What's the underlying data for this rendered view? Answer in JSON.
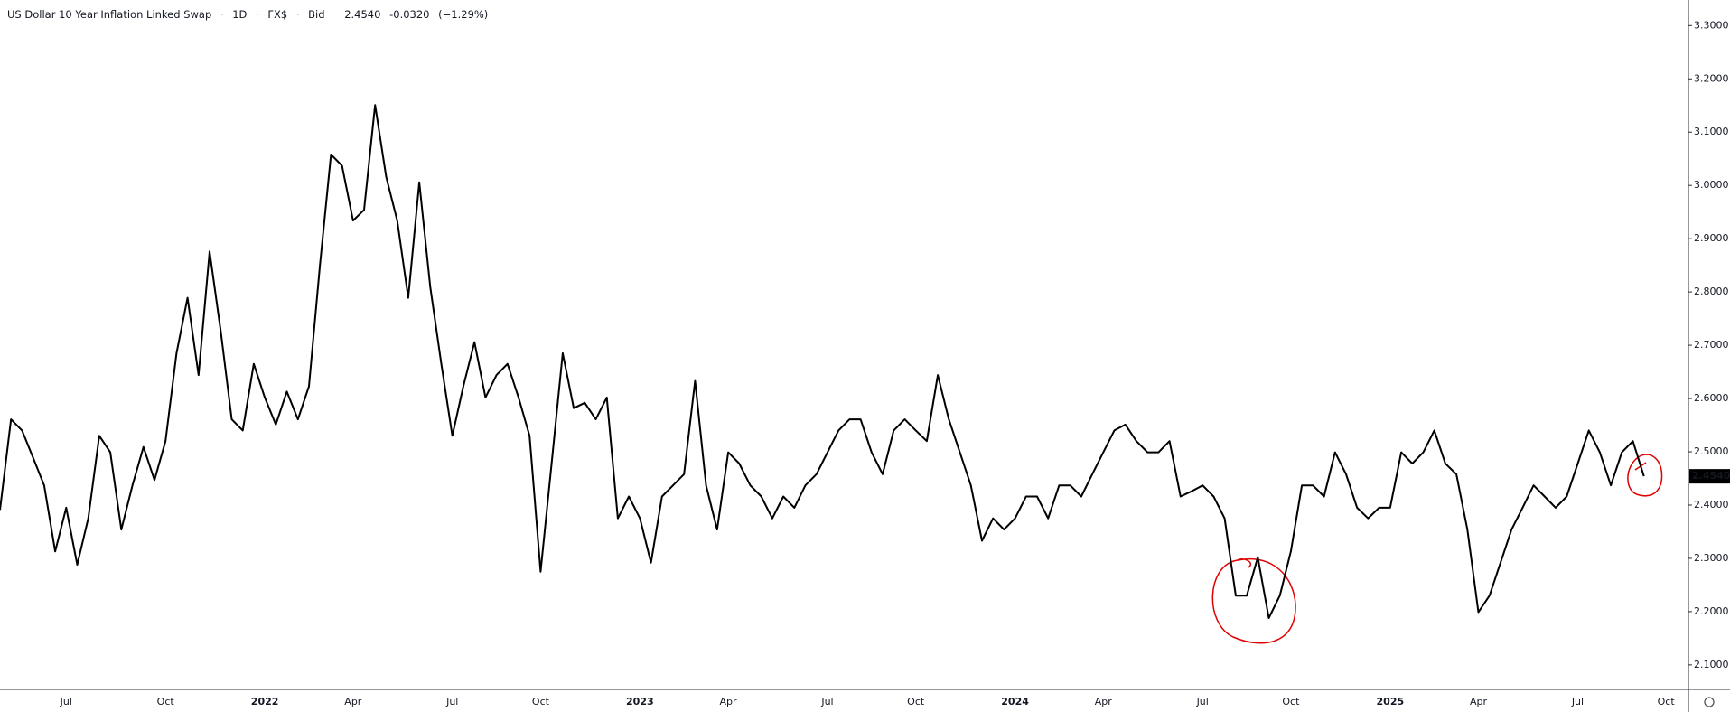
{
  "chart_data": {
    "type": "line",
    "title": "US Dollar 10 Year Inflation Linked Swap",
    "interval": "1D",
    "source": "FX$",
    "quote_side": "Bid",
    "last_price": "2.4540",
    "change": "-0.0320",
    "change_percent": "(−1.29%)",
    "color": "#000000",
    "categories": [
      null,
      null,
      null,
      null,
      null,
      null,
      "Jul",
      null,
      null,
      null,
      null,
      null,
      null,
      null,
      null,
      "Oct",
      null,
      null,
      null,
      null,
      null,
      null,
      null,
      null,
      "2022",
      null,
      null,
      null,
      null,
      null,
      null,
      null,
      "Apr",
      null,
      null,
      null,
      null,
      null,
      null,
      null,
      null,
      "Jul",
      null,
      null,
      null,
      null,
      null,
      null,
      null,
      "Oct",
      null,
      null,
      null,
      null,
      null,
      null,
      null,
      null,
      "2023",
      null,
      null,
      null,
      null,
      null,
      null,
      null,
      "Apr",
      null,
      null,
      null,
      null,
      null,
      null,
      null,
      null,
      "Jul",
      null,
      null,
      null,
      null,
      null,
      null,
      null,
      "Oct",
      null,
      null,
      null,
      null,
      null,
      null,
      null,
      null,
      "2024",
      null,
      null,
      null,
      null,
      null,
      null,
      null,
      "Apr",
      null,
      null,
      null,
      null,
      null,
      null,
      null,
      null,
      "Jul",
      null,
      null,
      null,
      null,
      null,
      null,
      null,
      "Oct",
      null,
      null,
      null,
      null,
      null,
      null,
      null,
      null,
      "2025",
      null,
      null,
      null,
      null,
      null,
      null,
      null,
      "Apr",
      null,
      null,
      null,
      null,
      null,
      null,
      null,
      null,
      "Jul",
      null,
      null,
      null,
      null,
      null,
      null,
      null,
      "Oct",
      null,
      null,
      null
    ],
    "values": [
      2.391,
      2.561,
      2.54,
      2.489,
      2.437,
      2.313,
      2.395,
      2.288,
      2.375,
      2.53,
      2.499,
      2.354,
      2.437,
      2.509,
      2.447,
      2.52,
      2.685,
      2.789,
      2.644,
      2.876,
      2.727,
      2.561,
      2.54,
      2.665,
      2.602,
      2.551,
      2.613,
      2.561,
      2.623,
      2.851,
      3.058,
      3.037,
      2.934,
      2.954,
      3.151,
      3.016,
      2.934,
      2.789,
      3.006,
      2.809,
      2.665,
      2.53,
      2.623,
      2.706,
      2.602,
      2.644,
      2.665,
      2.602,
      2.53,
      2.275,
      2.478,
      2.685,
      2.582,
      2.592,
      2.561,
      2.602,
      2.375,
      2.416,
      2.375,
      2.292,
      2.416,
      2.437,
      2.458,
      2.633,
      2.437,
      2.354,
      2.499,
      2.478,
      2.437,
      2.416,
      2.375,
      2.416,
      2.395,
      2.437,
      2.458,
      2.499,
      2.54,
      2.561,
      2.561,
      2.499,
      2.458,
      2.54,
      2.561,
      2.54,
      2.52,
      2.644,
      2.561,
      2.499,
      2.437,
      2.333,
      2.375,
      2.354,
      2.375,
      2.416,
      2.416,
      2.375,
      2.437,
      2.437,
      2.416,
      2.458,
      2.499,
      2.54,
      2.551,
      2.52,
      2.499,
      2.499,
      2.52,
      2.416,
      2.426,
      2.437,
      2.416,
      2.375,
      2.23,
      2.23,
      2.302,
      2.188,
      2.23,
      2.313,
      2.437,
      2.437,
      2.416,
      2.499,
      2.458,
      2.395,
      2.375,
      2.395,
      2.395,
      2.499,
      2.478,
      2.499,
      2.54,
      2.478,
      2.458,
      2.354,
      2.199,
      2.23,
      2.292,
      2.354,
      2.395,
      2.437,
      2.416,
      2.395,
      2.416,
      2.478,
      2.54,
      2.499,
      2.437,
      2.499,
      2.52,
      2.454,
      null,
      null,
      null,
      null,
      null
    ],
    "ylim": [
      2.054,
      3.348
    ],
    "yticks": [
      {
        "value": 2.1,
        "label": "2.1000"
      },
      {
        "value": 2.2,
        "label": "2.2000"
      },
      {
        "value": 2.3,
        "label": "2.3000"
      },
      {
        "value": 2.4,
        "label": "2.4000"
      },
      {
        "value": 2.5,
        "label": "2.5000"
      },
      {
        "value": 2.6,
        "label": "2.6000"
      },
      {
        "value": 2.7,
        "label": "2.7000"
      },
      {
        "value": 2.8,
        "label": "2.8000"
      },
      {
        "value": 2.9,
        "label": "2.9000"
      },
      {
        "value": 3.0,
        "label": "3.0000"
      },
      {
        "value": 3.1,
        "label": "3.1000"
      },
      {
        "value": 3.2,
        "label": "3.2000"
      },
      {
        "value": 3.3,
        "label": "3.3000"
      }
    ],
    "grid": false
  }
}
